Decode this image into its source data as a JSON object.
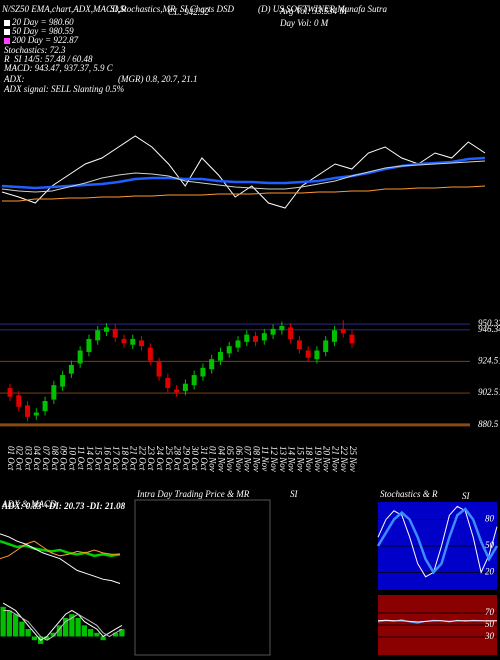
{
  "chart_data": [
    {
      "type": "line",
      "annotations": [
        "N/SZ50 EMA,chart,ADX,MACD,R",
        "SI,Stochastics,MR",
        "SI Charts DSD",
        "(D) US SOFTWINER Munafa Sutra",
        "20 Day = 980.60",
        "50 Day = 980.59",
        "200 Day = 922.87",
        "Stochastics: 72.3",
        "R",
        "SI 14/5: 57.48 / 60.48",
        "MACD: 943.47, 937.37, 5.9 C",
        "ADX:",
        "(MGR) 0.8, 20.7, 21.1",
        "ADX  signal: SELL Slanting 0.5%",
        "CL: 942.92",
        "Avg Vol: 33.534  M",
        "Day Vol: 0  M"
      ],
      "ylim": [
        900,
        1000
      ],
      "series": [
        {
          "color": "#ffffff",
          "values": [
            933,
            928,
            922,
            939,
            950,
            961,
            967,
            978,
            989,
            978,
            961,
            939,
            967,
            950,
            928,
            939,
            922,
            917,
            939,
            950,
            961,
            956,
            972,
            978,
            967,
            961,
            972,
            967,
            983,
            972
          ]
        },
        {
          "color": "#1f5fff",
          "values": [
            939,
            938,
            937,
            938,
            939,
            940,
            941,
            943,
            946,
            947,
            947,
            946,
            946,
            944,
            943,
            943,
            942,
            942,
            943,
            944,
            947,
            949,
            952,
            956,
            959,
            961,
            962,
            963,
            966,
            967
          ]
        },
        {
          "color": "#d0d0d0",
          "values": [
            936,
            934,
            933,
            934,
            938,
            942,
            947,
            950,
            952,
            951,
            949,
            944,
            942,
            940,
            938,
            937,
            936,
            936,
            938,
            941,
            944,
            949,
            953,
            957,
            959,
            960,
            961,
            962,
            963,
            964
          ]
        },
        {
          "color": "#ff9a30",
          "values": [
            924,
            924,
            926,
            926,
            927,
            927,
            928,
            928,
            929,
            929,
            930,
            930,
            930,
            931,
            931,
            931,
            932,
            932,
            932,
            933,
            933,
            934,
            934,
            936,
            936,
            937,
            937,
            938,
            938,
            939
          ]
        }
      ]
    },
    {
      "type": "candlestick",
      "categories": [
        "01 Oct",
        "02 Oct",
        "03 Oct",
        "04 Oct",
        "07 Oct",
        "08 Oct",
        "09 Oct",
        "10 Oct",
        "11 Oct",
        "14 Oct",
        "15 Oct",
        "16 Oct",
        "17 Oct",
        "18 Oct",
        "21 Oct",
        "22 Oct",
        "23 Oct",
        "24 Oct",
        "25 Oct",
        "28 Oct",
        "29 Oct",
        "30 Oct",
        "31 Oct",
        "01 Nov",
        "04 Nov",
        "05 Nov",
        "06 Nov",
        "07 Nov",
        "08 Nov",
        "11 Nov",
        "12 Nov",
        "13 Nov",
        "14 Nov",
        "15 Nov",
        "18 Nov",
        "19 Nov",
        "20 Nov",
        "21 Nov",
        "22 Nov",
        "25 Nov"
      ],
      "open": [
        906,
        901,
        894,
        887,
        890,
        898,
        907,
        916,
        923,
        931,
        939,
        945,
        947,
        940,
        936,
        939,
        934,
        924,
        913,
        905,
        904,
        908,
        914,
        919,
        925,
        930,
        934,
        938,
        942,
        939,
        943,
        946,
        948,
        939,
        932,
        926,
        931,
        938,
        947,
        943
      ],
      "high": [
        909,
        904,
        897,
        892,
        900,
        911,
        918,
        925,
        935,
        943,
        949,
        951,
        950,
        943,
        943,
        942,
        937,
        927,
        916,
        908,
        912,
        918,
        923,
        929,
        934,
        938,
        942,
        946,
        945,
        947,
        950,
        952,
        951,
        942,
        935,
        935,
        942,
        949,
        953,
        946
      ],
      "low": [
        897,
        890,
        883,
        884,
        887,
        895,
        904,
        913,
        920,
        928,
        936,
        942,
        938,
        934,
        933,
        932,
        922,
        911,
        903,
        900,
        901,
        905,
        911,
        916,
        922,
        927,
        931,
        935,
        935,
        936,
        940,
        943,
        937,
        930,
        924,
        923,
        928,
        935,
        941,
        934
      ],
      "close": [
        900,
        893,
        886,
        889,
        897,
        908,
        915,
        922,
        932,
        940,
        946,
        948,
        941,
        937,
        940,
        935,
        925,
        914,
        906,
        903,
        909,
        915,
        920,
        926,
        931,
        935,
        939,
        943,
        938,
        944,
        947,
        949,
        940,
        933,
        927,
        932,
        939,
        946,
        944,
        937
      ],
      "up_color": "#00c000",
      "down_color": "#e00000",
      "ylim": [
        870,
        967
      ],
      "yticks": [
        950.32,
        946.34,
        924.51,
        902.51,
        880.5
      ],
      "grid": true
    },
    {
      "type": "line",
      "title": "ADX  & MACD",
      "subtitle": "ADX: 0.83  +DI: 20.73  -DI: 21.08",
      "ylim": [
        0,
        50
      ],
      "series": [
        {
          "color": "#00d000",
          "values": [
            30,
            28,
            26,
            27,
            25,
            24,
            23,
            24,
            22,
            21,
            22,
            20,
            21,
            20,
            21
          ]
        },
        {
          "color": "#ff9a30",
          "values": [
            18,
            20,
            24,
            28,
            30,
            26,
            22,
            20,
            21,
            23,
            22,
            24,
            22,
            21,
            21
          ]
        },
        {
          "color": "#ffffff",
          "values": [
            35,
            33,
            30,
            28,
            25,
            22,
            20,
            18,
            14,
            10,
            8,
            6,
            4,
            3,
            1
          ]
        }
      ]
    },
    {
      "type": "bar",
      "color": "#00c000",
      "values": [
        8,
        7,
        6,
        4,
        2,
        -1,
        -2,
        -1,
        1,
        3,
        5,
        6,
        5,
        3,
        2,
        1,
        -1,
        0,
        1,
        2
      ],
      "ylim": [
        -5,
        12
      ],
      "series": [
        {
          "color": "#ffffff",
          "values": [
            9,
            8,
            7,
            5,
            3,
            1,
            -1,
            0,
            2,
            4,
            6,
            7,
            6,
            4,
            3,
            2,
            0,
            1,
            2,
            3
          ]
        },
        {
          "color": "#c0c0c0",
          "values": [
            7,
            7,
            6,
            5,
            4,
            2,
            0,
            -1,
            0,
            2,
            4,
            5,
            6,
            5,
            4,
            3,
            1,
            0,
            1,
            2
          ]
        }
      ]
    },
    {
      "type": "line",
      "title": "Stochastics & R",
      "subtitle": "SI",
      "background": "#0000c8",
      "ylim": [
        0,
        100
      ],
      "yticks": [
        80,
        50,
        20
      ],
      "grid": true,
      "series": [
        {
          "color": "#ffffff",
          "values": [
            60,
            80,
            90,
            85,
            60,
            30,
            15,
            20,
            50,
            85,
            95,
            90,
            60,
            20,
            40,
            72
          ]
        },
        {
          "color": "#3a8cff",
          "values": [
            50,
            65,
            80,
            88,
            80,
            60,
            35,
            20,
            30,
            60,
            85,
            92,
            80,
            55,
            35,
            50
          ]
        }
      ]
    },
    {
      "type": "line",
      "background": "#8b0000",
      "ylim": [
        0,
        100
      ],
      "yticks": [
        70,
        50,
        30
      ],
      "grid": true,
      "series": [
        {
          "color": "#3a8cff",
          "values": [
            55,
            57,
            56,
            59,
            55,
            53,
            56,
            58,
            57,
            55,
            58,
            56,
            58,
            57,
            56,
            57
          ]
        },
        {
          "color": "#ffffff",
          "values": [
            57,
            58,
            57,
            57,
            56,
            55,
            56,
            57,
            57,
            56,
            57,
            57,
            57,
            57,
            57,
            57
          ]
        }
      ]
    }
  ],
  "intraday": {
    "title": "Intra  Day Trading Price  & MR",
    "suffix": "SI"
  }
}
